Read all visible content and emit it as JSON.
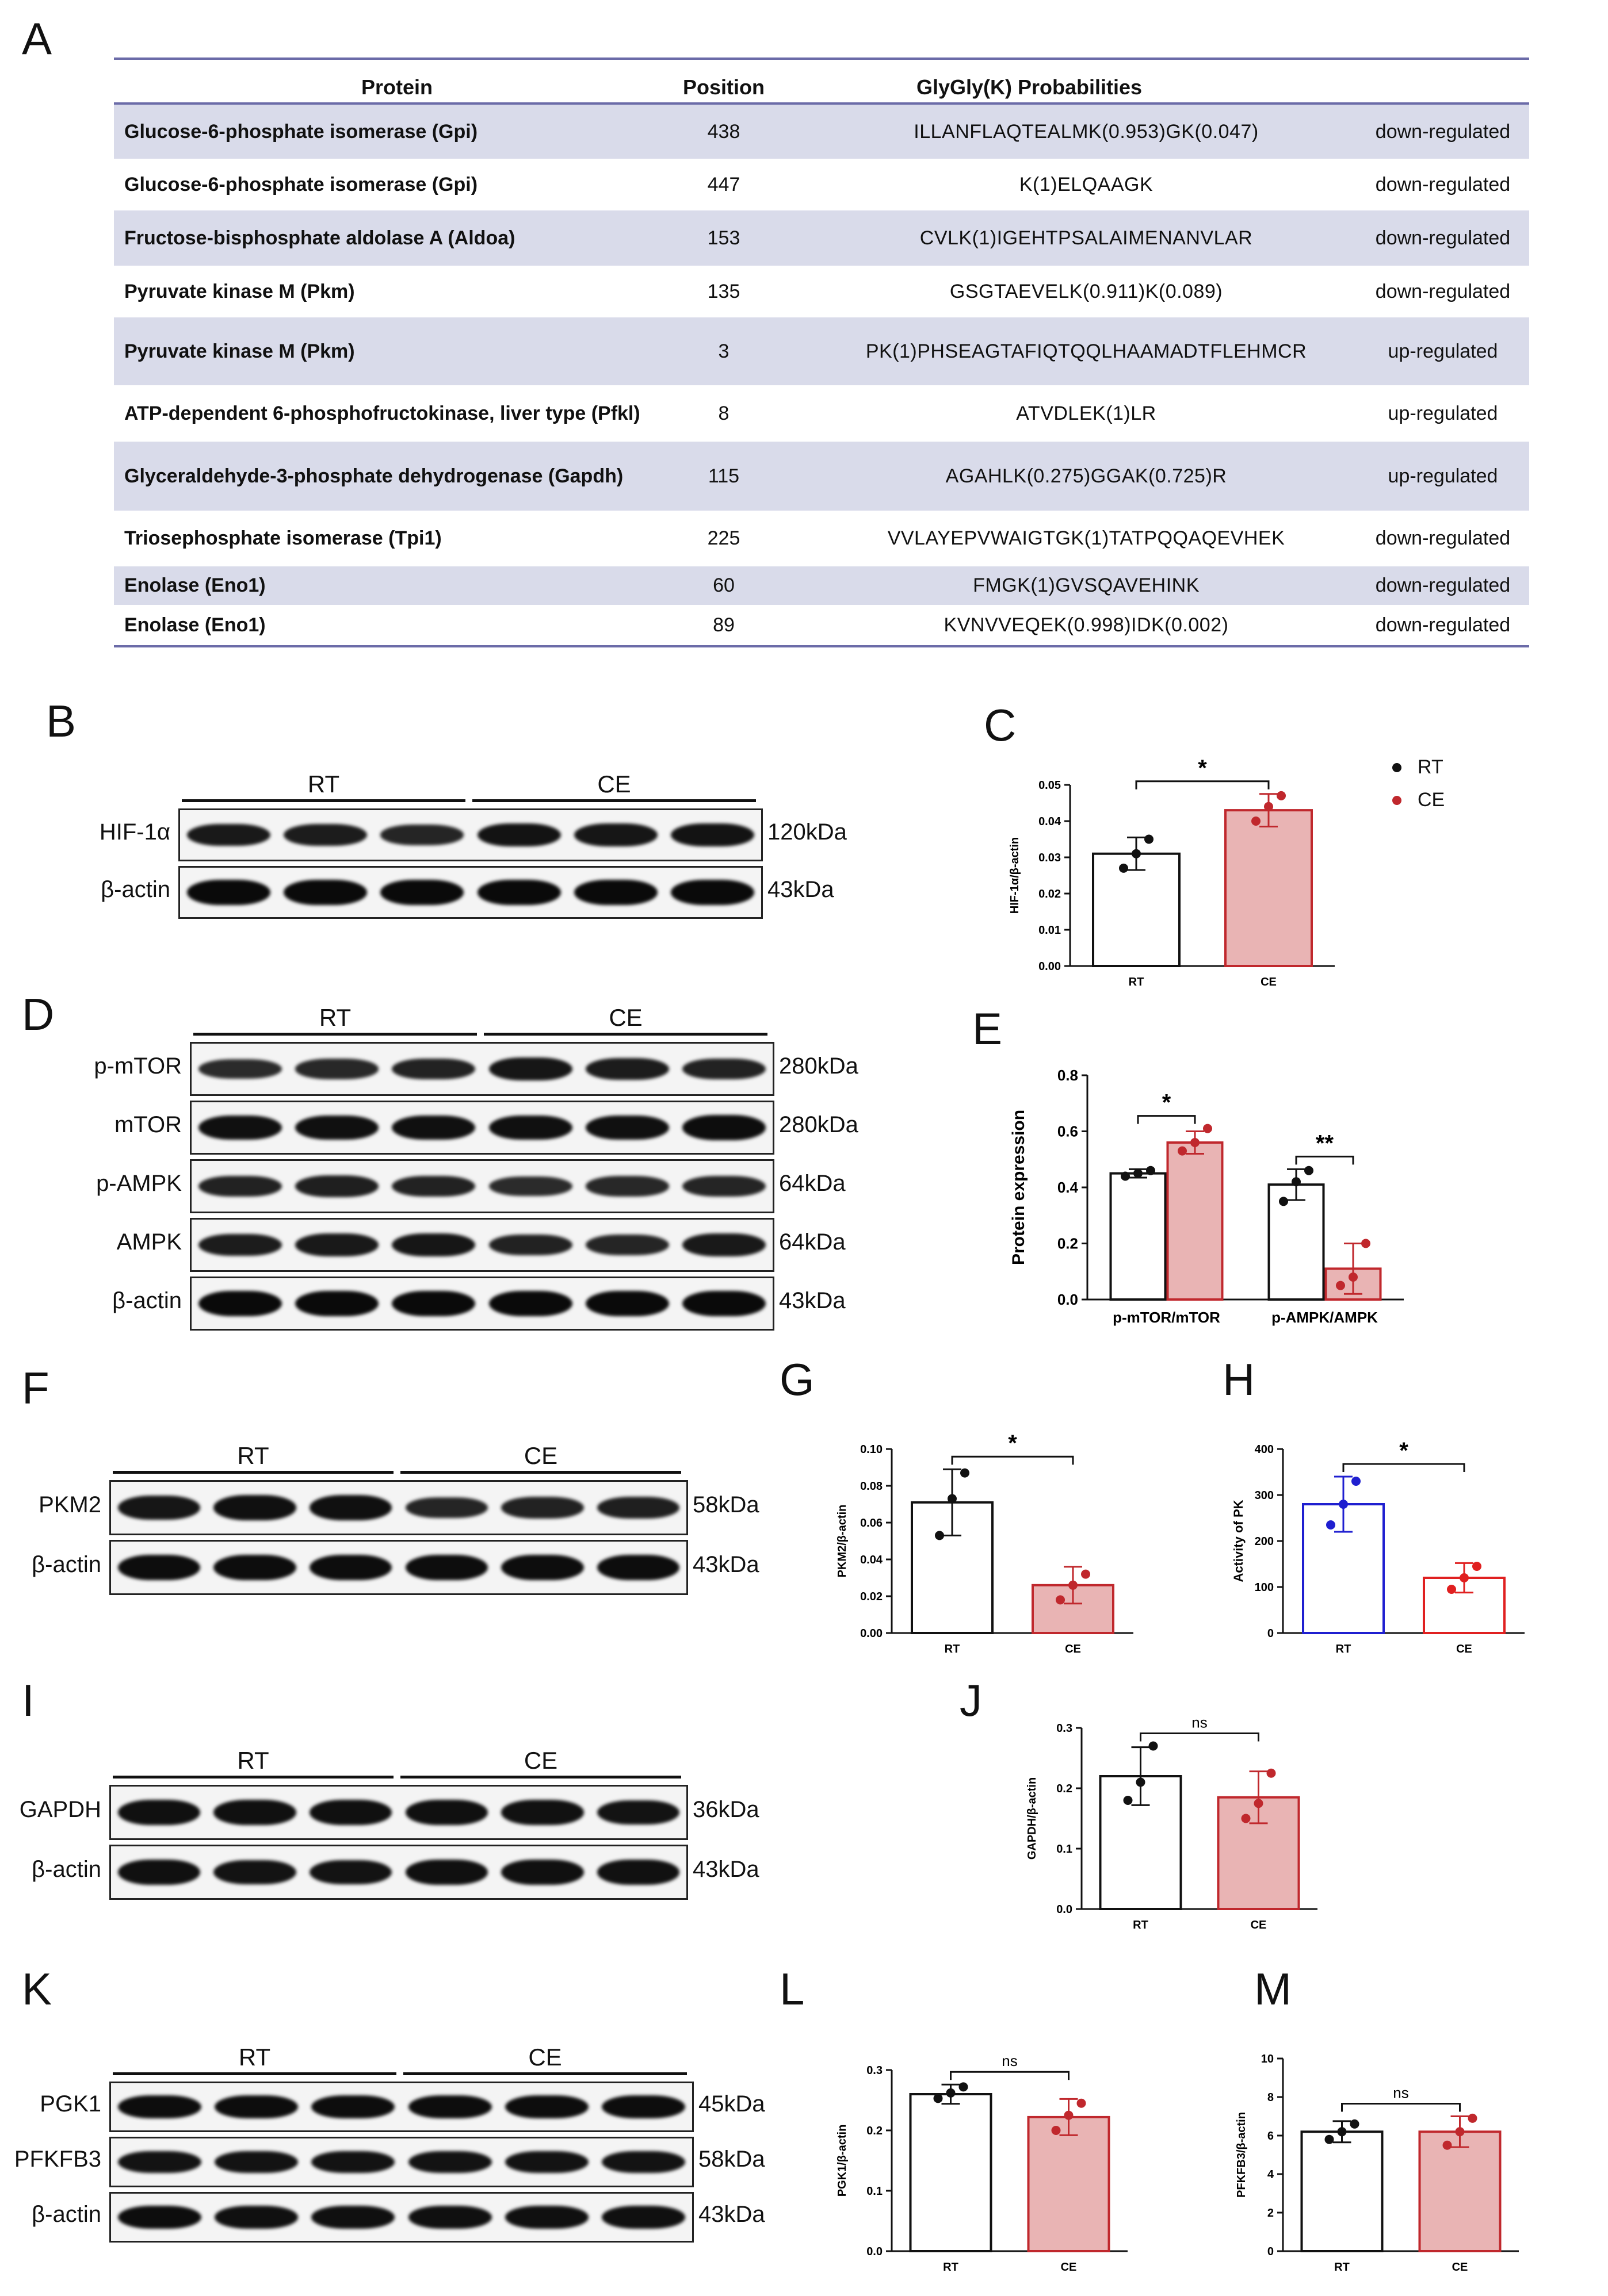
{
  "panel_letters": {
    "A": "A",
    "B": "B",
    "C": "C",
    "D": "D",
    "E": "E",
    "F": "F",
    "G": "G",
    "H": "H",
    "I": "I",
    "J": "J",
    "K": "K",
    "L": "L",
    "M": "M"
  },
  "table": {
    "headers": {
      "protein": "Protein",
      "position": "Position",
      "probabilities": "GlyGly(K) Probabilities"
    },
    "rows": [
      {
        "protein": "Glucose-6-phosphate isomerase (Gpi)",
        "position": "438",
        "seq": "ILLANFLAQTEALMK(0.953)GK(0.047)",
        "reg": "down-regulated"
      },
      {
        "protein": "Glucose-6-phosphate isomerase (Gpi)",
        "position": "447",
        "seq": "K(1)ELQAAGK",
        "reg": "down-regulated"
      },
      {
        "protein": "Fructose-bisphosphate aldolase A (Aldoa)",
        "position": "153",
        "seq": "CVLK(1)IGEHTPSALAIMENANVLAR",
        "reg": "down-regulated"
      },
      {
        "protein": "Pyruvate kinase M (Pkm)",
        "position": "135",
        "seq": "GSGTAEVELK(0.911)K(0.089)",
        "reg": "down-regulated"
      },
      {
        "protein": "Pyruvate kinase M (Pkm)",
        "position": "3",
        "seq": "PK(1)PHSEAGTAFIQTQQLHAAMADTFLEHMCR",
        "reg": "up-regulated"
      },
      {
        "protein": "ATP-dependent 6-phosphofructokinase, liver type (Pfkl)",
        "position": "8",
        "seq": "ATVDLEK(1)LR",
        "reg": "up-regulated"
      },
      {
        "protein": "Glyceraldehyde-3-phosphate dehydrogenase (Gapdh)",
        "position": "115",
        "seq": "AGAHLK(0.275)GGAK(0.725)R",
        "reg": "up-regulated"
      },
      {
        "protein": "Triosephosphate isomerase (Tpi1)",
        "position": "225",
        "seq": "VVLAYEPVWAIGTGK(1)TATPQQAQEVHEK",
        "reg": "down-regulated"
      },
      {
        "protein": "Enolase (Eno1)",
        "position": "60",
        "seq": "FMGK(1)GVSQAVEHINK",
        "reg": "down-regulated"
      },
      {
        "protein": "Enolase (Eno1)",
        "position": "89",
        "seq": "KVNVVEQEK(0.998)IDK(0.002)",
        "reg": "down-regulated"
      }
    ]
  },
  "blots": {
    "B": {
      "groups": [
        "RT",
        "CE"
      ],
      "rows": [
        {
          "name": "HIF-1α",
          "kda": "120kDa"
        },
        {
          "name": "β-actin",
          "kda": "43kDa"
        }
      ]
    },
    "D": {
      "groups": [
        "RT",
        "CE"
      ],
      "rows": [
        {
          "name": "p-mTOR",
          "kda": "280kDa"
        },
        {
          "name": "mTOR",
          "kda": "280kDa"
        },
        {
          "name": "p-AMPK",
          "kda": "64kDa"
        },
        {
          "name": "AMPK",
          "kda": "64kDa"
        },
        {
          "name": "β-actin",
          "kda": "43kDa"
        }
      ]
    },
    "F": {
      "groups": [
        "RT",
        "CE"
      ],
      "rows": [
        {
          "name": "PKM2",
          "kda": "58kDa"
        },
        {
          "name": "β-actin",
          "kda": "43kDa"
        }
      ]
    },
    "I": {
      "groups": [
        "RT",
        "CE"
      ],
      "rows": [
        {
          "name": "GAPDH",
          "kda": "36kDa"
        },
        {
          "name": "β-actin",
          "kda": "43kDa"
        }
      ]
    },
    "K": {
      "groups": [
        "RT",
        "CE"
      ],
      "rows": [
        {
          "name": "PGK1",
          "kda": "45kDa"
        },
        {
          "name": "PFKFB3",
          "kda": "58kDa"
        },
        {
          "name": "β-actin",
          "kda": "43kDa"
        }
      ]
    }
  },
  "legend": {
    "rt": "RT",
    "ce": "CE"
  },
  "colors": {
    "rt_edge": "#111111",
    "ce_edge": "#c0282d",
    "ce_fill": "#e9b4b4",
    "pk_rt_edge": "#1f1fd0",
    "pk_ce_edge": "#e02020",
    "table_shade": "#d9dbea",
    "table_rule": "#6b6ba8"
  },
  "chart_data": [
    {
      "id": "C",
      "type": "bar",
      "categories": [
        "RT",
        "CE"
      ],
      "values": [
        0.031,
        0.043
      ],
      "errors": [
        0.0045,
        0.0045
      ],
      "points": [
        [
          0.027,
          0.031,
          0.035
        ],
        [
          0.04,
          0.044,
          0.047
        ]
      ],
      "ylabel": "HIF-1α/β-actin",
      "ylim": [
        0,
        0.05
      ],
      "yticks": [
        "0.00",
        "0.01",
        "0.02",
        "0.03",
        "0.04",
        "0.05"
      ],
      "sig": "*"
    },
    {
      "id": "E",
      "type": "bar",
      "categories": [
        "p-mTOR/mTOR",
        "p-AMPK/AMPK"
      ],
      "series": [
        {
          "name": "RT",
          "values": [
            0.45,
            0.41
          ],
          "errors": [
            0.015,
            0.055
          ],
          "points": [
            [
              0.44,
              0.45,
              0.46
            ],
            [
              0.35,
              0.42,
              0.46
            ]
          ]
        },
        {
          "name": "CE",
          "values": [
            0.56,
            0.11
          ],
          "errors": [
            0.04,
            0.09
          ],
          "points": [
            [
              0.53,
              0.56,
              0.61
            ],
            [
              0.05,
              0.08,
              0.2
            ]
          ]
        }
      ],
      "ylabel": "Protein expression",
      "ylim": [
        0,
        0.8
      ],
      "yticks": [
        "0.0",
        "0.2",
        "0.4",
        "0.6",
        "0.8"
      ],
      "sig": [
        "*",
        "**"
      ]
    },
    {
      "id": "G",
      "type": "bar",
      "categories": [
        "RT",
        "CE"
      ],
      "values": [
        0.071,
        0.026
      ],
      "errors": [
        0.018,
        0.01
      ],
      "points": [
        [
          0.053,
          0.073,
          0.087
        ],
        [
          0.018,
          0.026,
          0.032
        ]
      ],
      "ylabel": "PKM2/β-actin",
      "ylim": [
        0,
        0.1
      ],
      "yticks": [
        "0.00",
        "0.02",
        "0.04",
        "0.06",
        "0.08",
        "0.10"
      ],
      "sig": "*"
    },
    {
      "id": "H",
      "type": "bar",
      "categories": [
        "RT",
        "CE"
      ],
      "values": [
        280,
        120
      ],
      "errors": [
        60,
        32
      ],
      "points": [
        [
          235,
          280,
          330
        ],
        [
          95,
          120,
          145
        ]
      ],
      "ylabel": "Activity of PK",
      "ylim": [
        0,
        400
      ],
      "yticks": [
        "0",
        "100",
        "200",
        "300",
        "400"
      ],
      "sig": "*"
    },
    {
      "id": "J",
      "type": "bar",
      "categories": [
        "RT",
        "CE"
      ],
      "values": [
        0.22,
        0.185
      ],
      "errors": [
        0.048,
        0.043
      ],
      "points": [
        [
          0.18,
          0.21,
          0.27
        ],
        [
          0.15,
          0.175,
          0.225
        ]
      ],
      "ylabel": "GAPDH/β-actin",
      "ylim": [
        0,
        0.3
      ],
      "yticks": [
        "0.0",
        "0.1",
        "0.2",
        "0.3"
      ],
      "sig": "ns"
    },
    {
      "id": "L",
      "type": "bar",
      "categories": [
        "RT",
        "CE"
      ],
      "values": [
        0.26,
        0.222
      ],
      "errors": [
        0.016,
        0.03
      ],
      "points": [
        [
          0.253,
          0.262,
          0.272
        ],
        [
          0.2,
          0.225,
          0.245
        ]
      ],
      "ylabel": "PGK1/β-actin",
      "ylim": [
        0,
        0.3
      ],
      "yticks": [
        "0.0",
        "0.1",
        "0.2",
        "0.3"
      ],
      "sig": "ns"
    },
    {
      "id": "M",
      "type": "bar",
      "categories": [
        "RT",
        "CE"
      ],
      "values": [
        6.2,
        6.2
      ],
      "errors": [
        0.55,
        0.8
      ],
      "points": [
        [
          5.8,
          6.2,
          6.6
        ],
        [
          5.5,
          6.2,
          6.9
        ]
      ],
      "ylabel": "PFKFB3/β-actin",
      "ylim": [
        0,
        10
      ],
      "yticks": [
        "0",
        "2",
        "4",
        "6",
        "8",
        "10"
      ],
      "sig": "ns"
    }
  ]
}
